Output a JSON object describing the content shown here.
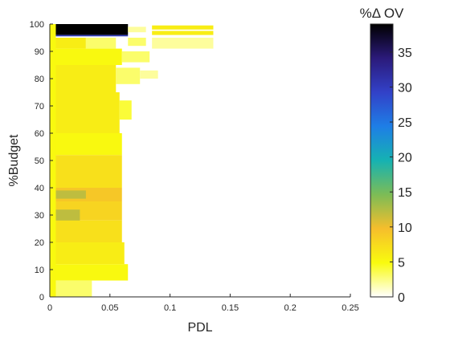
{
  "chart_data": {
    "type": "heatmap",
    "xlabel": "PDL",
    "ylabel": "%Budget",
    "colorbar_label": "%Δ OV",
    "xlim": [
      0,
      0.25
    ],
    "ylim": [
      0,
      100
    ],
    "x_ticks": [
      0,
      0.05,
      0.1,
      0.15,
      0.2,
      0.25
    ],
    "x_tick_labels": [
      "0",
      "0.05",
      "0.1",
      "0.15",
      "0.2",
      "0.25"
    ],
    "y_ticks": [
      0,
      10,
      20,
      30,
      40,
      50,
      60,
      70,
      80,
      90,
      100
    ],
    "y_tick_labels": [
      "0",
      "10",
      "20",
      "30",
      "40",
      "50",
      "60",
      "70",
      "80",
      "90",
      "100"
    ],
    "colorbar_range": [
      0,
      39
    ],
    "colorbar_ticks": [
      0,
      5,
      10,
      15,
      20,
      25,
      30,
      35
    ],
    "colorbar_tick_labels": [
      "0",
      "5",
      "10",
      "15",
      "20",
      "25",
      "30",
      "35"
    ],
    "colormap": "parula (reversed)",
    "colormap_stops": [
      "#ffffff",
      "#f9fb0e",
      "#f6be2c",
      "#7cbc56",
      "#16b2b2",
      "#1e7ee6",
      "#3241c8",
      "#2b1a7a",
      "#000000"
    ],
    "grid": false,
    "cells": [
      {
        "x": [
          0.0,
          0.065
        ],
        "y": [
          96,
          100
        ],
        "value": 39
      },
      {
        "x": [
          0.0,
          0.065
        ],
        "y": [
          95.5,
          96
        ],
        "value": 30
      },
      {
        "x": [
          0.085,
          0.136
        ],
        "y": [
          98,
          99.5
        ],
        "value": 6
      },
      {
        "x": [
          0.085,
          0.136
        ],
        "y": [
          96,
          97.5
        ],
        "value": 6
      },
      {
        "x": [
          0.065,
          0.08
        ],
        "y": [
          97,
          99
        ],
        "value": 2
      },
      {
        "x": [
          0.0,
          0.03
        ],
        "y": [
          91,
          95
        ],
        "value": 6
      },
      {
        "x": [
          0.03,
          0.055
        ],
        "y": [
          91,
          95
        ],
        "value": 3
      },
      {
        "x": [
          0.065,
          0.08
        ],
        "y": [
          92,
          95
        ],
        "value": 3
      },
      {
        "x": [
          0.085,
          0.136
        ],
        "y": [
          91,
          95
        ],
        "value": 2
      },
      {
        "x": [
          0.0,
          0.06
        ],
        "y": [
          85,
          91
        ],
        "value": 5
      },
      {
        "x": [
          0.06,
          0.083
        ],
        "y": [
          86,
          90
        ],
        "value": 3
      },
      {
        "x": [
          0.0,
          0.055
        ],
        "y": [
          75,
          85
        ],
        "value": 6
      },
      {
        "x": [
          0.055,
          0.075
        ],
        "y": [
          78,
          84
        ],
        "value": 3
      },
      {
        "x": [
          0.075,
          0.09
        ],
        "y": [
          80,
          83
        ],
        "value": 2
      },
      {
        "x": [
          0.0,
          0.058
        ],
        "y": [
          60,
          75
        ],
        "value": 6
      },
      {
        "x": [
          0.058,
          0.068
        ],
        "y": [
          65,
          72
        ],
        "value": 4
      },
      {
        "x": [
          0.0,
          0.06
        ],
        "y": [
          52,
          60
        ],
        "value": 5
      },
      {
        "x": [
          0.0,
          0.06
        ],
        "y": [
          40,
          52
        ],
        "value": 7
      },
      {
        "x": [
          0.0,
          0.06
        ],
        "y": [
          35,
          40
        ],
        "value": 9
      },
      {
        "x": [
          0.005,
          0.03
        ],
        "y": [
          36,
          39
        ],
        "value": 12
      },
      {
        "x": [
          0.0,
          0.06
        ],
        "y": [
          28,
          35
        ],
        "value": 8
      },
      {
        "x": [
          0.005,
          0.025
        ],
        "y": [
          25,
          32
        ],
        "value": 12
      },
      {
        "x": [
          0.0,
          0.06
        ],
        "y": [
          20,
          28
        ],
        "value": 7
      },
      {
        "x": [
          0.0,
          0.062
        ],
        "y": [
          12,
          20
        ],
        "value": 6
      },
      {
        "x": [
          0.0,
          0.065
        ],
        "y": [
          6,
          12
        ],
        "value": 5
      },
      {
        "x": [
          0.0,
          0.035
        ],
        "y": [
          0,
          6
        ],
        "value": 3
      },
      {
        "x": [
          0.0,
          0.005
        ],
        "y": [
          0,
          100
        ],
        "value": 5
      }
    ]
  }
}
